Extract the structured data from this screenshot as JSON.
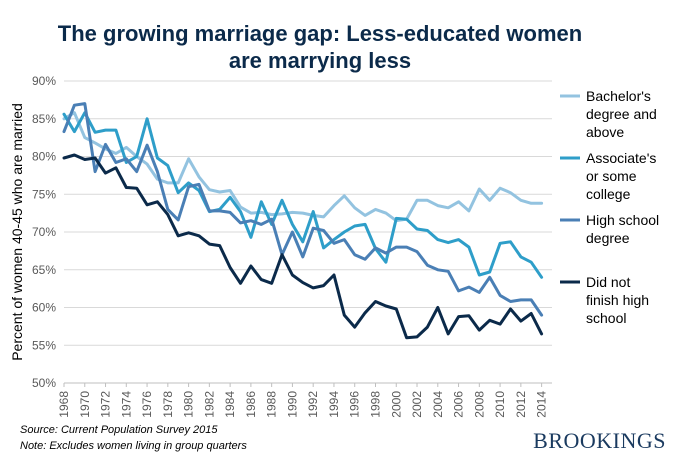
{
  "chart_data": {
    "type": "line",
    "title_lines": [
      "The growing marriage gap: Less-educated women",
      "are marrying less"
    ],
    "ylabel": "Percent of women 40-45 who are married",
    "xlabel": "",
    "ylim": [
      50,
      90
    ],
    "yticks": [
      "50%",
      "55%",
      "60%",
      "65%",
      "70%",
      "75%",
      "80%",
      "85%",
      "90%"
    ],
    "ytick_values": [
      50,
      55,
      60,
      65,
      70,
      75,
      80,
      85,
      90
    ],
    "xlim": [
      1968,
      2015
    ],
    "xtick_labels": [
      "1968",
      "1970",
      "1972",
      "1974",
      "1976",
      "1978",
      "1980",
      "1982",
      "1984",
      "1986",
      "1988",
      "1990",
      "1992",
      "1994",
      "1996",
      "1998",
      "2000",
      "2002",
      "2004",
      "2006",
      "2008",
      "2010",
      "2012",
      "2014"
    ],
    "grid": true,
    "legend_position": "right",
    "x": [
      1968,
      1969,
      1970,
      1971,
      1972,
      1973,
      1974,
      1975,
      1976,
      1977,
      1978,
      1979,
      1980,
      1981,
      1982,
      1983,
      1984,
      1985,
      1986,
      1987,
      1988,
      1989,
      1990,
      1991,
      1992,
      1993,
      1994,
      1995,
      1996,
      1997,
      1998,
      1999,
      2000,
      2001,
      2002,
      2003,
      2004,
      2005,
      2006,
      2007,
      2008,
      2009,
      2010,
      2011,
      2012,
      2013,
      2014
    ],
    "series": [
      {
        "name_lines": [
          "Bachelor's",
          "degree and",
          "above"
        ],
        "color": "#93c3e0",
        "values": [
          85.0,
          85.8,
          82.5,
          81.8,
          81.0,
          80.4,
          81.2,
          80.0,
          79.0,
          77.0,
          76.5,
          76.5,
          79.7,
          77.3,
          75.6,
          75.3,
          75.5,
          73.3,
          72.5,
          72.6,
          72.3,
          72.4,
          72.6,
          72.5,
          72.2,
          72.0,
          73.5,
          74.8,
          73.2,
          72.2,
          73.0,
          72.5,
          71.5,
          71.7,
          74.2,
          74.2,
          73.5,
          73.2,
          74.0,
          72.8,
          75.7,
          74.2,
          75.8,
          75.2,
          74.2,
          73.8,
          73.8
        ]
      },
      {
        "name_lines": [
          "Associate's",
          "or some",
          "college"
        ],
        "color": "#2e9ec9",
        "values": [
          85.6,
          83.3,
          85.8,
          83.2,
          83.5,
          83.5,
          79.2,
          80.0,
          85.0,
          79.8,
          78.8,
          75.2,
          76.5,
          75.5,
          72.7,
          73.0,
          74.6,
          72.7,
          69.3,
          74.0,
          71.0,
          74.2,
          71.0,
          68.7,
          72.7,
          67.9,
          69.0,
          70.0,
          70.8,
          71.0,
          67.8,
          66.0,
          71.8,
          71.7,
          70.4,
          70.2,
          69.0,
          68.6,
          69.0,
          68.0,
          64.3,
          64.7,
          68.5,
          68.7,
          66.7,
          66.0,
          64.0
        ]
      },
      {
        "name_lines": [
          "High school",
          "degree"
        ],
        "color": "#4a7fb5",
        "values": [
          83.3,
          86.8,
          87.0,
          78.0,
          81.6,
          79.2,
          79.7,
          78.0,
          81.5,
          78.0,
          73.0,
          71.6,
          76.0,
          76.3,
          72.8,
          72.8,
          72.6,
          71.2,
          71.5,
          71.0,
          71.7,
          67.0,
          70.0,
          66.7,
          70.5,
          70.2,
          68.5,
          69.0,
          67.0,
          66.4,
          67.9,
          67.2,
          68.0,
          68.0,
          67.4,
          65.6,
          65.0,
          64.8,
          62.2,
          62.7,
          62.0,
          64.0,
          61.6,
          60.8,
          61.0,
          61.0,
          59.0
        ]
      },
      {
        "name_lines": [
          "Did not",
          "finish high",
          "school"
        ],
        "color": "#0b2a4a",
        "values": [
          79.8,
          80.2,
          79.6,
          79.8,
          77.8,
          78.5,
          75.9,
          75.8,
          73.6,
          74.0,
          72.3,
          69.5,
          69.9,
          69.5,
          68.4,
          68.2,
          65.3,
          63.2,
          65.5,
          63.7,
          63.2,
          67.0,
          64.3,
          63.3,
          62.6,
          62.9,
          64.3,
          59.0,
          57.4,
          59.3,
          60.8,
          60.2,
          59.8,
          56.0,
          56.1,
          57.4,
          60.0,
          56.5,
          58.8,
          58.9,
          57.0,
          58.3,
          57.8,
          59.8,
          58.2,
          59.2,
          56.5
        ]
      }
    ],
    "source": "Source: Current Population Survey 2015",
    "note": "Note: Excludes women living in group quarters"
  },
  "brand": "BROOKINGS"
}
